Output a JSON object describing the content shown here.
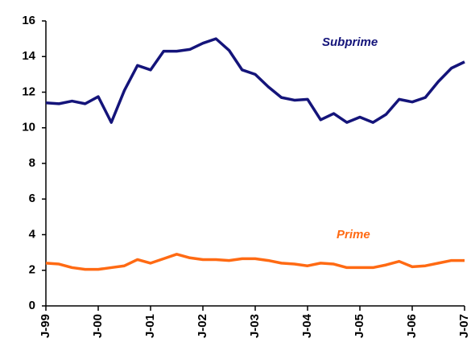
{
  "chart_data": {
    "type": "line",
    "categories": [
      "J-99",
      null,
      null,
      null,
      "J-00",
      null,
      null,
      null,
      "J-01",
      null,
      null,
      null,
      "J-02",
      null,
      null,
      null,
      "J-03",
      null,
      null,
      null,
      "J-04",
      null,
      null,
      null,
      "J-05",
      null,
      null,
      null,
      "J-06",
      null,
      null,
      null,
      "J-07"
    ],
    "series": [
      {
        "name": "Subprime",
        "color": "#14147a",
        "values": [
          11.4,
          11.35,
          11.5,
          11.35,
          11.75,
          10.3,
          12.1,
          13.5,
          13.25,
          14.3,
          14.3,
          14.4,
          14.75,
          15.0,
          14.35,
          13.25,
          13.0,
          12.3,
          11.7,
          11.55,
          11.6,
          10.45,
          10.8,
          10.3,
          10.6,
          10.3,
          10.75,
          11.6,
          11.45,
          11.7,
          12.6,
          13.35,
          13.7
        ]
      },
      {
        "name": "Prime",
        "color": "#ff6a13",
        "values": [
          2.4,
          2.35,
          2.15,
          2.05,
          2.05,
          2.15,
          2.25,
          2.6,
          2.4,
          2.65,
          2.9,
          2.7,
          2.6,
          2.6,
          2.55,
          2.65,
          2.65,
          2.55,
          2.4,
          2.35,
          2.25,
          2.4,
          2.35,
          2.15,
          2.15,
          2.15,
          2.3,
          2.5,
          2.2,
          2.25,
          2.4,
          2.55,
          2.55
        ]
      }
    ],
    "ylim": [
      0,
      16
    ],
    "yticks": [
      0,
      2,
      4,
      6,
      8,
      10,
      12,
      14,
      16
    ],
    "grid": false
  }
}
